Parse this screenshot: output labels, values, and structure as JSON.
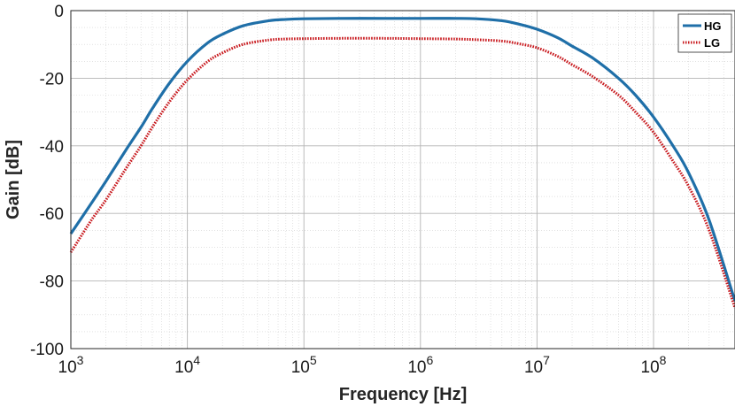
{
  "chart_data": {
    "type": "line",
    "title": "",
    "xlabel": "Frequency [Hz]",
    "ylabel": "Gain [dB]",
    "xscale": "log",
    "xlim": [
      1000,
      500000000
    ],
    "ylim": [
      -100,
      0
    ],
    "grid": true,
    "minor_grid": true,
    "legend_position": "top-right",
    "xticks": [
      {
        "value": 1000,
        "base": "10",
        "exp": "3"
      },
      {
        "value": 10000,
        "base": "10",
        "exp": "4"
      },
      {
        "value": 100000,
        "base": "10",
        "exp": "5"
      },
      {
        "value": 1000000,
        "base": "10",
        "exp": "6"
      },
      {
        "value": 10000000,
        "base": "10",
        "exp": "7"
      },
      {
        "value": 100000000,
        "base": "10",
        "exp": "8"
      }
    ],
    "yticks": [
      0,
      -20,
      -40,
      -60,
      -80,
      -100
    ],
    "series": [
      {
        "name": "HG",
        "color": "#1f6fa8",
        "style": "solid",
        "x": [
          1000,
          1500,
          2000,
          3000,
          4000,
          5000,
          7000,
          10000,
          15000,
          20000,
          30000,
          50000,
          70000,
          100000,
          200000,
          500000,
          1000000,
          2000000,
          3000000,
          5000000,
          7000000,
          10000000,
          15000000,
          20000000,
          30000000,
          50000000,
          70000000,
          100000000,
          150000000,
          200000000,
          300000000,
          500000000
        ],
        "y": [
          -66,
          -57,
          -50.5,
          -41,
          -34.5,
          -29,
          -21.5,
          -15,
          -9.5,
          -7,
          -4.5,
          -3,
          -2.6,
          -2.4,
          -2.3,
          -2.3,
          -2.3,
          -2.3,
          -2.4,
          -3,
          -4,
          -5.5,
          -8,
          -10.5,
          -14,
          -20,
          -25,
          -31.5,
          -40.5,
          -48,
          -62,
          -86
        ]
      },
      {
        "name": "LG",
        "color": "#c8191e",
        "style": "dotted",
        "x": [
          1000,
          1500,
          2000,
          3000,
          4000,
          5000,
          7000,
          10000,
          15000,
          20000,
          30000,
          50000,
          70000,
          100000,
          200000,
          500000,
          1000000,
          2000000,
          3000000,
          5000000,
          7000000,
          10000000,
          15000000,
          20000000,
          30000000,
          50000000,
          70000000,
          100000000,
          150000000,
          200000000,
          300000000,
          500000000
        ],
        "y": [
          -71.5,
          -62,
          -56,
          -46.5,
          -40,
          -34.5,
          -27,
          -20.5,
          -15,
          -12.5,
          -10,
          -8.7,
          -8.4,
          -8.3,
          -8.2,
          -8.2,
          -8.3,
          -8.4,
          -8.6,
          -9,
          -9.8,
          -11,
          -13.5,
          -16,
          -19.5,
          -25,
          -30,
          -36,
          -45,
          -52,
          -65,
          -88
        ]
      }
    ]
  }
}
